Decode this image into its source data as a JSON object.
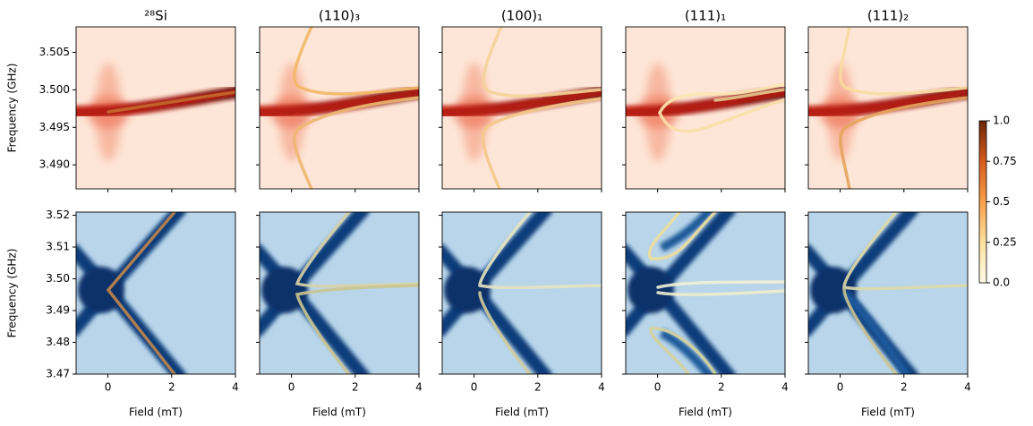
{
  "chart_data": {
    "type": "heatmap",
    "titles": [
      "²⁸Si",
      "(110)₃",
      "(100)₁",
      "(111)₁",
      "(111)₂"
    ],
    "xlabel": "Field (mT)",
    "xlim": [
      -1,
      4
    ],
    "xticks": [
      0,
      2,
      4
    ],
    "rows": [
      {
        "ylabel": "Frequency (GHz)",
        "ylim": [
          3.4868,
          3.5084
        ],
        "yticks": [
          {
            "value": 3.49,
            "label": "3.490"
          },
          {
            "value": 3.495,
            "label": "3.495"
          },
          {
            "value": 3.5,
            "label": "3.500"
          },
          {
            "value": 3.505,
            "label": "3.505"
          }
        ],
        "colormap": "orange"
      },
      {
        "ylabel": "Frequency (GHz)",
        "ylim": [
          3.47,
          3.521
        ],
        "yticks": [
          3.47,
          3.48,
          3.49,
          {
            "value": 3.5,
            "label": "3.50"
          },
          3.51,
          3.52
        ],
        "colormap": "blue"
      }
    ],
    "colorbar": {
      "lim": [
        0,
        1
      ],
      "ticks": [
        {
          "value": 0,
          "label": "0.0"
        },
        0.25,
        0.5,
        0.75,
        {
          "value": 1,
          "label": "1.0"
        }
      ]
    }
  }
}
